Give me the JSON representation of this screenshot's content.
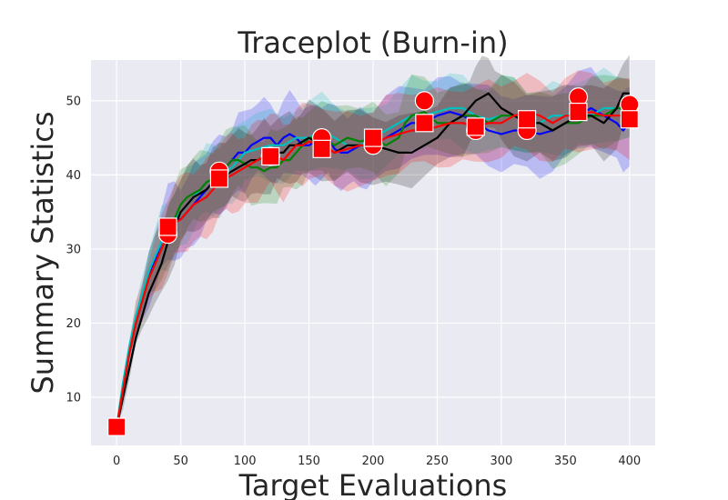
{
  "chart_data": {
    "type": "line",
    "title": "Traceplot (Burn-in)",
    "xlabel": "Target Evaluations",
    "ylabel": "Summary Statistics",
    "xlim": [
      -20,
      420
    ],
    "ylim": [
      3.5,
      55.5
    ],
    "xticks": [
      0,
      50,
      100,
      150,
      200,
      250,
      300,
      350,
      400
    ],
    "yticks": [
      10,
      20,
      30,
      40,
      50
    ],
    "grid": true,
    "background": "#eaeaf2",
    "series": [
      {
        "color": "#0000ff",
        "band_half_width": 5,
        "points": [
          [
            0,
            6
          ],
          [
            5,
            11
          ],
          [
            10,
            16
          ],
          [
            15,
            20
          ],
          [
            20,
            23
          ],
          [
            25,
            26
          ],
          [
            30,
            28.5
          ],
          [
            35,
            31
          ],
          [
            40,
            33
          ],
          [
            45,
            34
          ],
          [
            50,
            34
          ],
          [
            55,
            35
          ],
          [
            60,
            36
          ],
          [
            65,
            37
          ],
          [
            70,
            38
          ],
          [
            75,
            39
          ],
          [
            80,
            40
          ],
          [
            85,
            41
          ],
          [
            90,
            42
          ],
          [
            95,
            43
          ],
          [
            100,
            43
          ],
          [
            105,
            44
          ],
          [
            110,
            44.5
          ],
          [
            115,
            45
          ],
          [
            120,
            45
          ],
          [
            125,
            44
          ],
          [
            130,
            45
          ],
          [
            135,
            45.5
          ],
          [
            140,
            45
          ],
          [
            145,
            44
          ],
          [
            150,
            44
          ],
          [
            155,
            44.5
          ],
          [
            160,
            45
          ],
          [
            165,
            45
          ],
          [
            170,
            43.5
          ],
          [
            175,
            43
          ],
          [
            180,
            43
          ],
          [
            185,
            43.5
          ],
          [
            190,
            44
          ],
          [
            195,
            44
          ],
          [
            200,
            44
          ],
          [
            210,
            45
          ],
          [
            220,
            46
          ],
          [
            230,
            47
          ],
          [
            240,
            47
          ],
          [
            250,
            48
          ],
          [
            260,
            48.5
          ],
          [
            270,
            48
          ],
          [
            280,
            47
          ],
          [
            290,
            46
          ],
          [
            300,
            45.5
          ],
          [
            310,
            46
          ],
          [
            320,
            46
          ],
          [
            330,
            45.5
          ],
          [
            340,
            46
          ],
          [
            350,
            47
          ],
          [
            360,
            48
          ],
          [
            370,
            49
          ],
          [
            380,
            48
          ],
          [
            390,
            47
          ],
          [
            395,
            46
          ],
          [
            400,
            47
          ]
        ]
      },
      {
        "color": "#00bfbf",
        "band_half_width": 4.5,
        "points": [
          [
            0,
            6
          ],
          [
            5,
            12
          ],
          [
            10,
            17
          ],
          [
            15,
            21
          ],
          [
            20,
            24
          ],
          [
            25,
            27
          ],
          [
            30,
            29
          ],
          [
            35,
            31
          ],
          [
            40,
            32
          ],
          [
            45,
            34
          ],
          [
            50,
            35
          ],
          [
            55,
            36
          ],
          [
            60,
            37
          ],
          [
            65,
            38
          ],
          [
            70,
            39
          ],
          [
            75,
            39.5
          ],
          [
            80,
            40
          ],
          [
            85,
            40.5
          ],
          [
            90,
            41
          ],
          [
            95,
            42
          ],
          [
            100,
            43
          ],
          [
            110,
            43.5
          ],
          [
            120,
            44
          ],
          [
            130,
            44
          ],
          [
            140,
            45
          ],
          [
            150,
            45
          ],
          [
            160,
            46
          ],
          [
            170,
            45
          ],
          [
            180,
            44
          ],
          [
            190,
            44
          ],
          [
            200,
            45
          ],
          [
            210,
            46
          ],
          [
            220,
            47
          ],
          [
            230,
            48
          ],
          [
            240,
            48
          ],
          [
            250,
            48.5
          ],
          [
            260,
            49
          ],
          [
            270,
            49
          ],
          [
            280,
            48
          ],
          [
            290,
            47.5
          ],
          [
            300,
            48
          ],
          [
            310,
            48
          ],
          [
            320,
            47
          ],
          [
            330,
            47
          ],
          [
            340,
            48
          ],
          [
            350,
            48
          ],
          [
            360,
            48.5
          ],
          [
            370,
            48
          ],
          [
            380,
            49
          ],
          [
            390,
            49
          ],
          [
            400,
            49
          ]
        ]
      },
      {
        "color": "#008000",
        "band_half_width": 4.5,
        "points": [
          [
            0,
            6
          ],
          [
            5,
            11
          ],
          [
            10,
            16
          ],
          [
            15,
            20
          ],
          [
            20,
            23
          ],
          [
            25,
            26
          ],
          [
            30,
            28
          ],
          [
            35,
            30
          ],
          [
            40,
            32
          ],
          [
            45,
            34
          ],
          [
            50,
            36
          ],
          [
            55,
            37
          ],
          [
            60,
            37.5
          ],
          [
            65,
            38
          ],
          [
            70,
            39
          ],
          [
            75,
            39.5
          ],
          [
            80,
            40
          ],
          [
            85,
            41
          ],
          [
            90,
            42
          ],
          [
            95,
            42
          ],
          [
            100,
            41.5
          ],
          [
            105,
            41
          ],
          [
            110,
            41
          ],
          [
            115,
            40.5
          ],
          [
            120,
            41
          ],
          [
            125,
            41
          ],
          [
            130,
            42
          ],
          [
            135,
            42
          ],
          [
            140,
            43
          ],
          [
            145,
            44
          ],
          [
            150,
            45
          ],
          [
            160,
            45
          ],
          [
            170,
            44
          ],
          [
            180,
            45
          ],
          [
            190,
            44.5
          ],
          [
            200,
            45
          ],
          [
            210,
            44
          ],
          [
            220,
            45
          ],
          [
            225,
            47
          ],
          [
            230,
            48
          ],
          [
            240,
            48.5
          ],
          [
            250,
            47
          ],
          [
            260,
            47
          ],
          [
            270,
            48
          ],
          [
            280,
            48
          ],
          [
            290,
            47
          ],
          [
            300,
            48
          ],
          [
            310,
            48
          ],
          [
            320,
            47
          ],
          [
            330,
            47
          ],
          [
            340,
            46
          ],
          [
            350,
            47
          ],
          [
            360,
            47
          ],
          [
            370,
            48
          ],
          [
            380,
            48
          ],
          [
            390,
            49
          ],
          [
            400,
            49
          ]
        ]
      },
      {
        "color": "#000000",
        "band_half_width": 4.5,
        "points": [
          [
            0,
            6
          ],
          [
            5,
            10
          ],
          [
            10,
            14
          ],
          [
            15,
            18
          ],
          [
            20,
            21
          ],
          [
            25,
            24
          ],
          [
            30,
            26
          ],
          [
            35,
            28
          ],
          [
            40,
            31
          ],
          [
            45,
            33
          ],
          [
            50,
            35
          ],
          [
            55,
            36
          ],
          [
            60,
            37
          ],
          [
            65,
            37.5
          ],
          [
            70,
            38
          ],
          [
            75,
            39
          ],
          [
            80,
            39.5
          ],
          [
            85,
            40
          ],
          [
            90,
            40.5
          ],
          [
            95,
            41
          ],
          [
            100,
            41.5
          ],
          [
            105,
            42
          ],
          [
            110,
            42
          ],
          [
            115,
            42.5
          ],
          [
            120,
            42
          ],
          [
            125,
            43
          ],
          [
            130,
            43
          ],
          [
            135,
            44
          ],
          [
            140,
            44
          ],
          [
            145,
            44.5
          ],
          [
            150,
            45
          ],
          [
            160,
            44
          ],
          [
            170,
            43
          ],
          [
            180,
            44
          ],
          [
            190,
            44
          ],
          [
            200,
            44
          ],
          [
            210,
            43.5
          ],
          [
            220,
            43
          ],
          [
            230,
            43
          ],
          [
            240,
            44
          ],
          [
            250,
            45
          ],
          [
            260,
            47
          ],
          [
            270,
            48
          ],
          [
            275,
            49
          ],
          [
            280,
            50
          ],
          [
            285,
            50.5
          ],
          [
            290,
            51
          ],
          [
            295,
            50
          ],
          [
            300,
            49
          ],
          [
            310,
            48
          ],
          [
            320,
            47
          ],
          [
            330,
            47
          ],
          [
            340,
            46
          ],
          [
            350,
            47
          ],
          [
            360,
            48
          ],
          [
            370,
            48
          ],
          [
            380,
            47
          ],
          [
            390,
            49
          ],
          [
            395,
            51
          ],
          [
            400,
            51
          ]
        ]
      },
      {
        "color": "#ff0000",
        "band_half_width": 5,
        "points": [
          [
            0,
            6
          ],
          [
            5,
            11
          ],
          [
            10,
            16
          ],
          [
            15,
            20
          ],
          [
            20,
            23
          ],
          [
            25,
            26
          ],
          [
            30,
            28
          ],
          [
            35,
            30
          ],
          [
            40,
            32
          ],
          [
            45,
            33.5
          ],
          [
            50,
            34
          ],
          [
            55,
            35
          ],
          [
            60,
            36
          ],
          [
            65,
            36.5
          ],
          [
            70,
            37
          ],
          [
            75,
            38
          ],
          [
            80,
            39
          ],
          [
            85,
            39.5
          ],
          [
            90,
            40
          ],
          [
            95,
            40.5
          ],
          [
            100,
            41
          ],
          [
            105,
            41.5
          ],
          [
            110,
            42
          ],
          [
            115,
            42.5
          ],
          [
            120,
            43
          ],
          [
            125,
            42.5
          ],
          [
            130,
            42
          ],
          [
            135,
            43
          ],
          [
            140,
            44
          ],
          [
            145,
            44
          ],
          [
            150,
            44.5
          ],
          [
            160,
            44
          ],
          [
            170,
            43
          ],
          [
            180,
            43.5
          ],
          [
            190,
            44
          ],
          [
            200,
            44
          ],
          [
            210,
            45
          ],
          [
            220,
            45.5
          ],
          [
            230,
            46
          ],
          [
            240,
            46
          ],
          [
            250,
            46.5
          ],
          [
            260,
            47
          ],
          [
            270,
            47
          ],
          [
            280,
            46.5
          ],
          [
            290,
            47
          ],
          [
            300,
            47
          ],
          [
            310,
            48
          ],
          [
            320,
            48.5
          ],
          [
            330,
            48
          ],
          [
            340,
            47
          ],
          [
            350,
            48
          ],
          [
            360,
            48
          ],
          [
            370,
            48.5
          ],
          [
            380,
            48
          ],
          [
            390,
            48
          ],
          [
            400,
            48
          ]
        ]
      }
    ],
    "circle_markers": {
      "color": "#ff0000",
      "x": [
        0,
        40,
        80,
        120,
        160,
        200,
        240,
        280,
        320,
        360,
        400
      ],
      "y": [
        6,
        32,
        40.5,
        42.5,
        45,
        44,
        50,
        46,
        46,
        50.5,
        49.5
      ]
    },
    "square_markers": {
      "color": "#ff0000",
      "x": [
        0,
        40,
        80,
        120,
        160,
        200,
        240,
        280,
        320,
        360,
        400
      ],
      "y": [
        6,
        33,
        39.5,
        42.5,
        43.5,
        45,
        47,
        46.5,
        47.5,
        48.5,
        47.5
      ]
    }
  }
}
